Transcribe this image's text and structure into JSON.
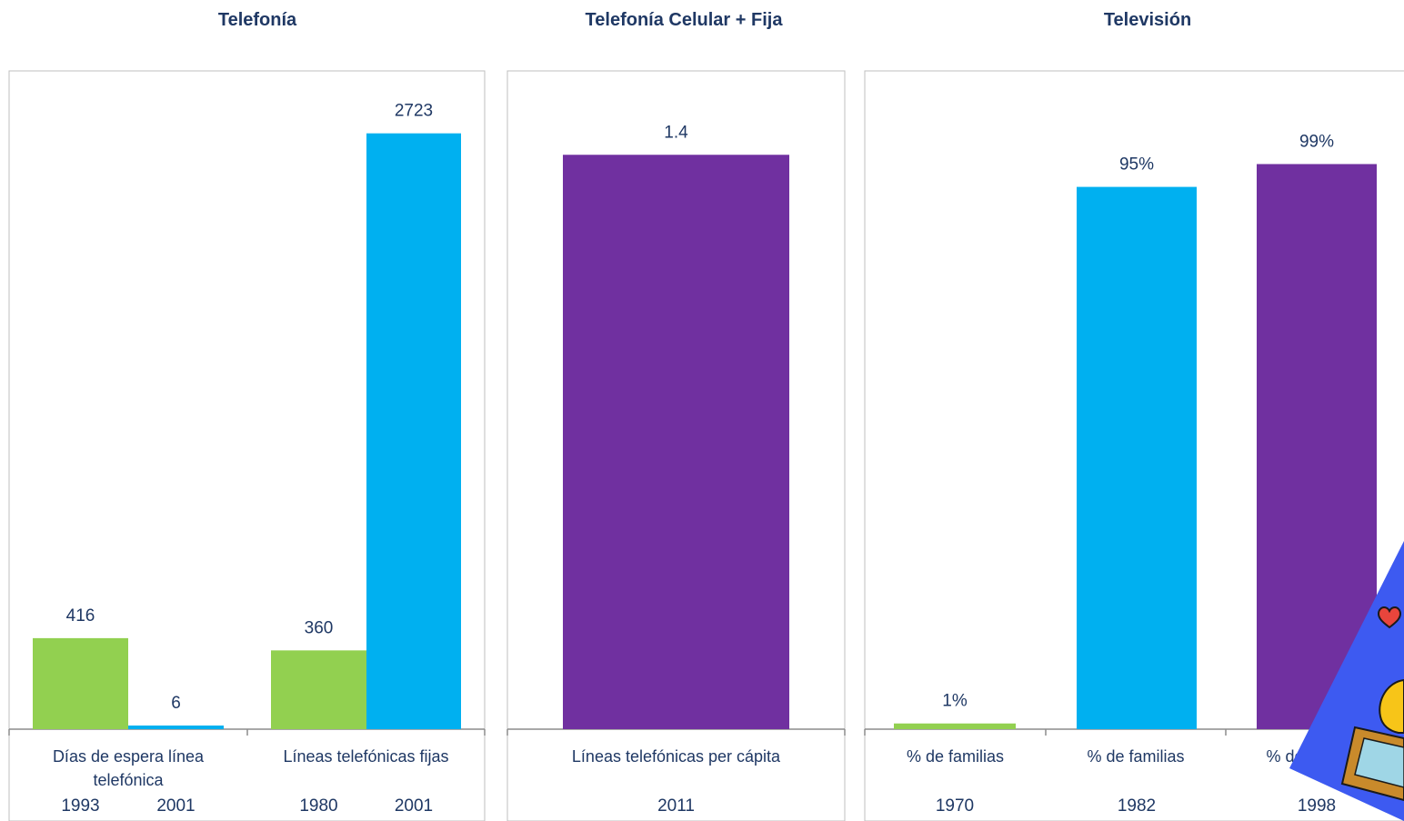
{
  "colors": {
    "green": "#92d050",
    "blue": "#00b0f0",
    "purple": "#7030a0",
    "text": "#1f3864"
  },
  "chart_data": [
    {
      "type": "bar",
      "title": "Telefonía",
      "ylim": [
        0,
        3000
      ],
      "groups": [
        {
          "category": "Días de espera línea telefónica",
          "category_lines": [
            "Días de espera línea",
            "telefónica"
          ],
          "bars": [
            {
              "year": "1993",
              "value": 416,
              "label": "416",
              "color": "green"
            },
            {
              "year": "2001",
              "value": 6,
              "label": "6",
              "color": "blue"
            }
          ]
        },
        {
          "category": "Líneas telefónicas fijas",
          "category_lines": [
            "Líneas telefónicas fijas"
          ],
          "bars": [
            {
              "year": "1980",
              "value": 360,
              "label": "360",
              "color": "green"
            },
            {
              "year": "2001",
              "value": 2723,
              "label": "2723",
              "color": "blue"
            }
          ]
        }
      ]
    },
    {
      "type": "bar",
      "title": "Telefonía Celular + Fija",
      "ylim": [
        0,
        1.6
      ],
      "groups": [
        {
          "category": "Líneas telefónicas per cápita",
          "category_lines": [
            "Líneas telefónicas per cápita"
          ],
          "bars": [
            {
              "year": "2011",
              "value": 1.4,
              "label": "1.4",
              "color": "purple"
            }
          ]
        }
      ]
    },
    {
      "type": "bar",
      "title": "Televisión",
      "ylim": [
        0,
        1.15
      ],
      "groups": [
        {
          "category": "% de familias",
          "category_lines": [
            "% de familias"
          ],
          "bars": [
            {
              "year": "1970",
              "value": 0.01,
              "label": "1%",
              "color": "green"
            }
          ]
        },
        {
          "category": "% de familias",
          "category_lines": [
            "% de familias"
          ],
          "bars": [
            {
              "year": "1982",
              "value": 0.95,
              "label": "95%",
              "color": "blue"
            }
          ]
        },
        {
          "category": "% de familias",
          "category_lines": [
            "% de familias"
          ],
          "bars": [
            {
              "year": "1998",
              "value": 0.99,
              "label": "99%",
              "color": "purple"
            }
          ]
        }
      ]
    }
  ]
}
